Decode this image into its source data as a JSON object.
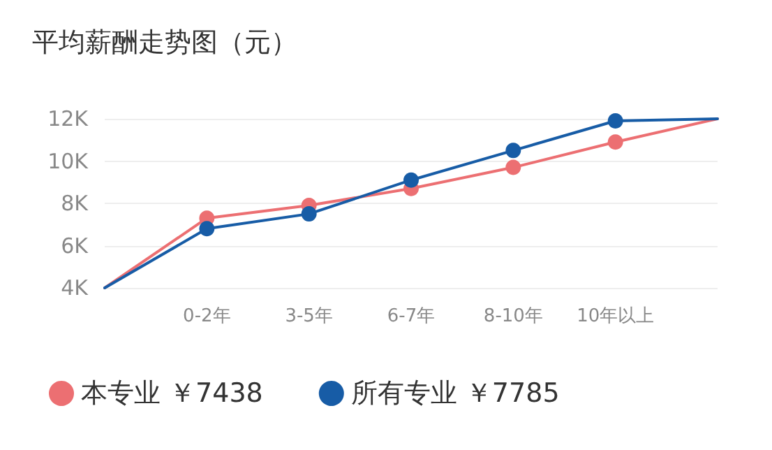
{
  "chart_data": {
    "type": "line",
    "title": "平均薪酬走势图（元）",
    "categories": [
      null,
      "0-2年",
      "3-5年",
      "6-7年",
      "8-10年",
      "10年以上",
      null
    ],
    "series": [
      {
        "name": "本专业 ￥7438",
        "color": "#ec6f72",
        "values": [
          4,
          7.3,
          7.9,
          8.7,
          9.7,
          10.9,
          12
        ]
      },
      {
        "name": "所有专业 ￥7785",
        "color": "#175ca6",
        "values": [
          4,
          6.8,
          7.5,
          9.1,
          10.5,
          11.9,
          12
        ]
      }
    ],
    "ylim": [
      4,
      12
    ],
    "yticks": [
      {
        "value": 4,
        "label": "4K"
      },
      {
        "value": 6,
        "label": "6K"
      },
      {
        "value": 8,
        "label": "8K"
      },
      {
        "value": 10,
        "label": "10K"
      },
      {
        "value": 12,
        "label": "12K"
      }
    ],
    "grid": "y",
    "legend": "bottom left",
    "marker": "circle",
    "line_style": "solid"
  }
}
